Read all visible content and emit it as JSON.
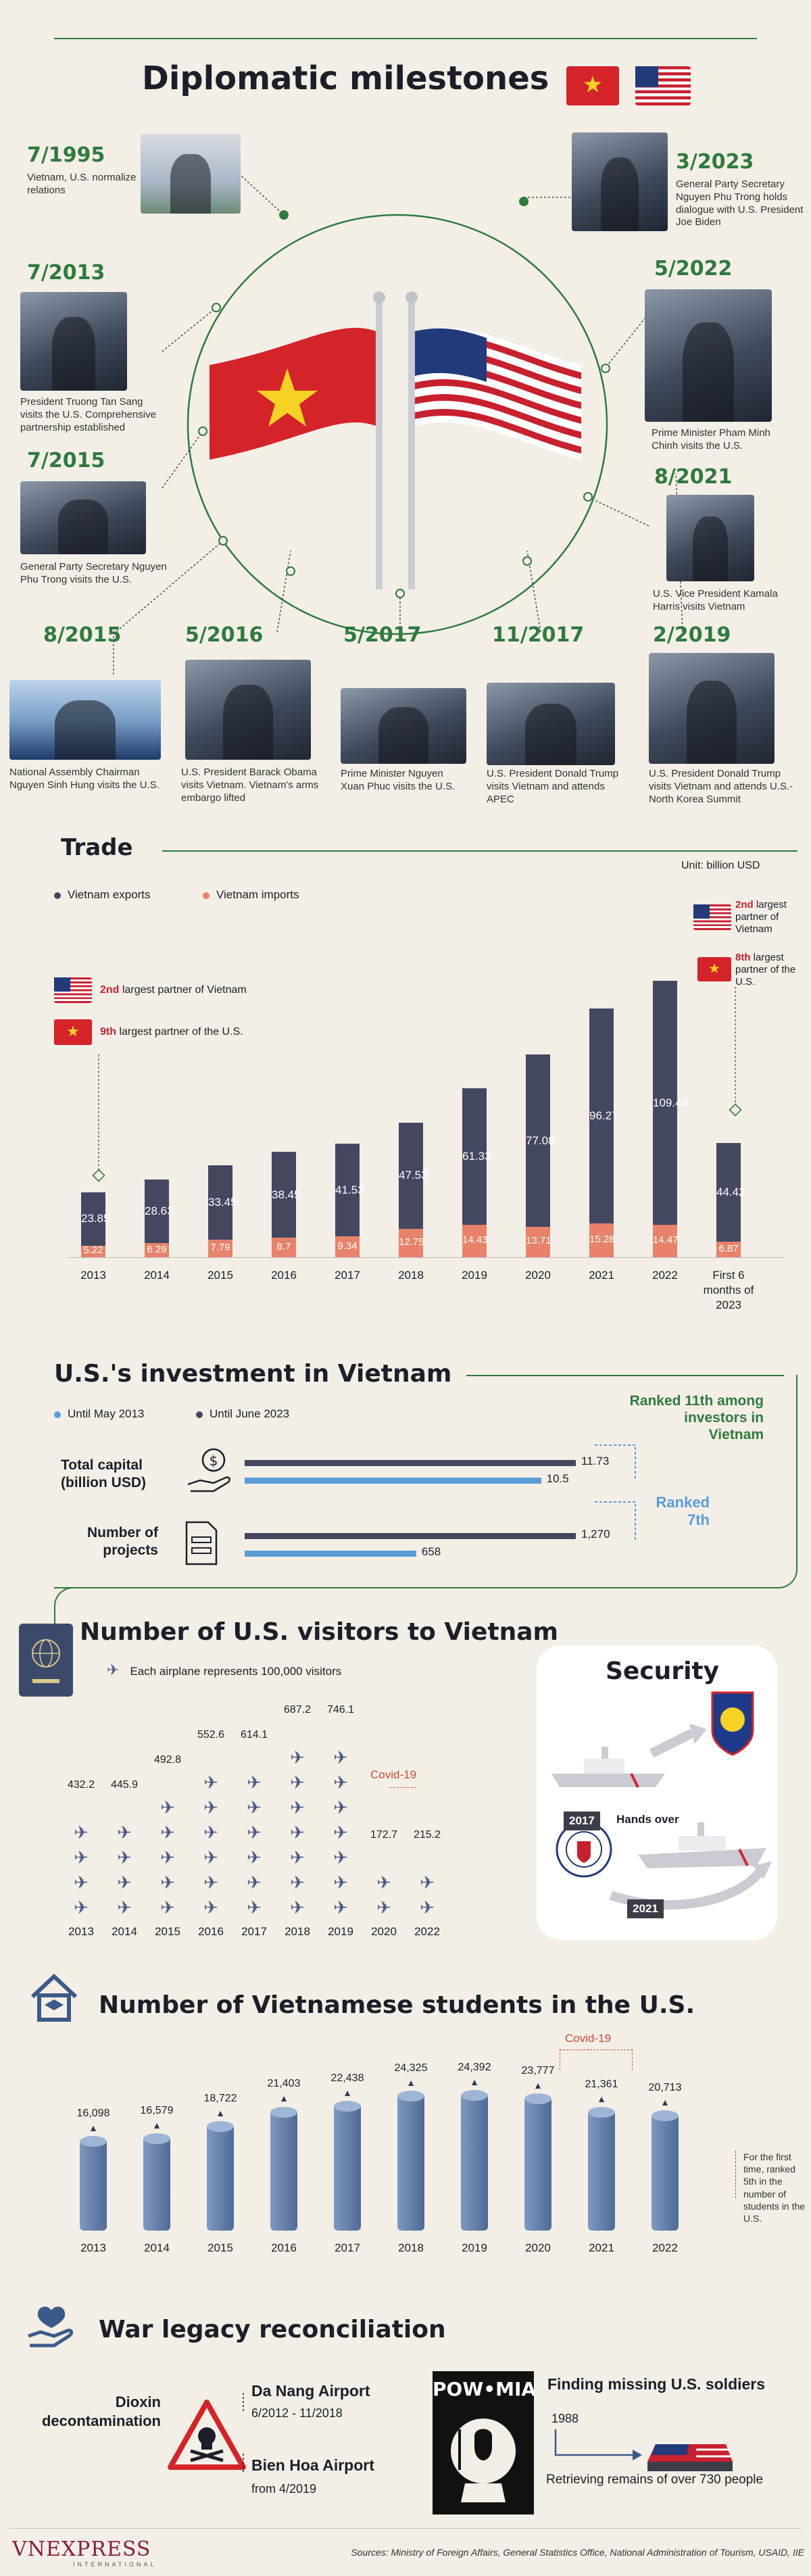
{
  "header": {
    "title": "Diplomatic milestones"
  },
  "milestones": [
    {
      "date": "7/1995",
      "caption": "Vietnam, U.S. normalize relations"
    },
    {
      "date": "7/2013",
      "caption": "President Truong Tan Sang visits the U.S. Comprehensive partnership established"
    },
    {
      "date": "7/2015",
      "caption": "General Party Secretary Nguyen Phu Trong visits the U.S."
    },
    {
      "date": "8/2015",
      "caption": "National Assembly Chairman Nguyen Sinh Hung visits the U.S."
    },
    {
      "date": "5/2016",
      "caption": "U.S. President Barack Obama visits Vietnam. Vietnam's arms embargo lifted"
    },
    {
      "date": "5/2017",
      "caption": "Prime Minister Nguyen Xuan Phuc visits the U.S."
    },
    {
      "date": "11/2017",
      "caption": "U.S. President Donald Trump visits Vietnam and attends APEC"
    },
    {
      "date": "2/2019",
      "caption": "U.S. President Donald Trump visits Vietnam and attends U.S.-North Korea Summit"
    },
    {
      "date": "8/2021",
      "caption": "U.S. Vice President Kamala Harris visits Vietnam"
    },
    {
      "date": "5/2022",
      "caption": "Prime Minister Pham Minh Chinh visits the U.S."
    },
    {
      "date": "3/2023",
      "caption": "General Party Secretary Nguyen Phu Trong holds dialogue with U.S. President Joe Biden"
    }
  ],
  "trade": {
    "title": "Trade",
    "unit": "Unit: billion USD",
    "legend_exports": "Vietnam exports",
    "legend_imports": "Vietnam imports",
    "note_2013_a_strong": "2nd",
    "note_2013_a": "largest partner of Vietnam",
    "note_2013_b_strong": "9th",
    "note_2013_b": "largest partner of the U.S.",
    "note_2023_a_strong": "2nd",
    "note_2023_a": "largest partner of Vietnam",
    "note_2023_b_strong": "8th",
    "note_2023_b": "largest partner of the U.S.",
    "colors": {
      "exports": "#444760",
      "imports": "#e8826a"
    }
  },
  "chart_data": {
    "type": "bar",
    "categories": [
      "2013",
      "2014",
      "2015",
      "2016",
      "2017",
      "2018",
      "2019",
      "2020",
      "2021",
      "2022",
      "First 6 months of 2023"
    ],
    "series": [
      {
        "name": "Vietnam exports",
        "values": [
          23.85,
          28.63,
          33.45,
          38.45,
          41.53,
          47.53,
          61.33,
          77.08,
          96.27,
          109.44,
          44.42
        ]
      },
      {
        "name": "Vietnam imports",
        "values": [
          5.22,
          6.29,
          7.79,
          8.7,
          9.34,
          12.75,
          14.43,
          13.71,
          15.28,
          14.47,
          6.87
        ]
      }
    ]
  },
  "investment": {
    "title": "U.S.'s investment in Vietnam",
    "legend_a": "Until May 2013",
    "legend_b": "Until June 2023",
    "capital_label": "Total capital (billion USD)",
    "capital_2023": "11.73",
    "capital_2013": "10.5",
    "capital_values": [
      10.5,
      11.73
    ],
    "projects_label": "Number of projects",
    "projects_2023": "1,270",
    "projects_2013": "658",
    "project_values": [
      658,
      1270
    ],
    "rank_2023": "Ranked 11th among investors in Vietnam",
    "rank_2013": "Ranked 7th"
  },
  "visitors": {
    "title": "Number of U.S. visitors to Vietnam",
    "note": "Each airplane represents 100,000 visitors",
    "covid": "Covid-19",
    "years": [
      "2013",
      "2014",
      "2015",
      "2016",
      "2017",
      "2018",
      "2019",
      "2020",
      "2022"
    ],
    "values": [
      "432.2",
      "445.9",
      "492.8",
      "552.6",
      "614.1",
      "687.2",
      "746.1",
      "172.7",
      "215.2"
    ]
  },
  "security": {
    "title": "Security",
    "year_a": "2017",
    "year_b": "2021",
    "label": "Hands over"
  },
  "students": {
    "title": "Number of Vietnamese students in the U.S.",
    "covid": "Covid-19",
    "years": [
      "2013",
      "2014",
      "2015",
      "2016",
      "2017",
      "2018",
      "2019",
      "2020",
      "2021",
      "2022"
    ],
    "values": [
      "16,098",
      "16,579",
      "18,722",
      "21,403",
      "22,438",
      "24,325",
      "24,392",
      "23,777",
      "21,361",
      "20,713"
    ],
    "note": "For the first time, ranked 5th in the number of students in the U.S."
  },
  "war": {
    "title": "War legacy reconciliation",
    "dioxin": "Dioxin decontamination",
    "airport_a": "Da Nang Airport",
    "airport_a_dates": "6/2012 - 11/2018",
    "airport_b": "Bien Hoa Airport",
    "airport_b_dates": "from 4/2019",
    "powmia": "POW•MIA",
    "missing_title": "Finding missing U.S. soldiers",
    "missing_year": "1988",
    "missing_note": "Retrieving remains of over 730 people"
  },
  "footer": {
    "logo": "VnExpress",
    "logo_sub": "INTERNATIONAL",
    "sources": "Sources: Ministry of Foreign Affairs, General Statistics Office, National Administration of Tourism, USAID, IIE"
  }
}
